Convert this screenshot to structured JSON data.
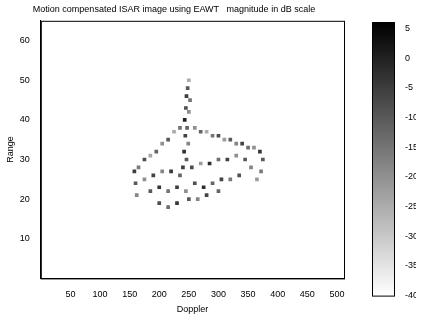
{
  "chart_data": {
    "type": "heatmap",
    "title": "Motion compensated ISAR image using EAWT   magnitude in dB scale",
    "x_label": "Doppler",
    "y_label": "Range",
    "xlim": [
      0,
      512
    ],
    "xticks": [
      50,
      100,
      150,
      200,
      250,
      300,
      350,
      400,
      450,
      500
    ],
    "ylim": [
      0,
      65
    ],
    "yticks": [
      10,
      20,
      30,
      40,
      50,
      60
    ],
    "grid": false,
    "cells": [
      [
        250,
        50,
        -25
      ],
      [
        248,
        48,
        -10
      ],
      [
        246,
        46,
        -5
      ],
      [
        252,
        45,
        -15
      ],
      [
        245,
        43,
        -8
      ],
      [
        250,
        42,
        -20
      ],
      [
        243,
        40,
        0
      ],
      [
        247,
        38,
        -12
      ],
      [
        244,
        36,
        -6
      ],
      [
        249,
        34,
        -18
      ],
      [
        242,
        32,
        -3
      ],
      [
        246,
        30,
        -10
      ],
      [
        240,
        28,
        -5
      ],
      [
        260,
        38,
        -20
      ],
      [
        270,
        37,
        -12
      ],
      [
        280,
        37,
        -25
      ],
      [
        290,
        36,
        -15
      ],
      [
        300,
        36,
        -8
      ],
      [
        310,
        35,
        -22
      ],
      [
        320,
        35,
        -10
      ],
      [
        330,
        34,
        -18
      ],
      [
        340,
        34,
        -6
      ],
      [
        350,
        33,
        -14
      ],
      [
        360,
        33,
        -20
      ],
      [
        370,
        32,
        -4
      ],
      [
        375,
        30,
        -10
      ],
      [
        372,
        27,
        -16
      ],
      [
        365,
        25,
        -22
      ],
      [
        235,
        38,
        -15
      ],
      [
        225,
        37,
        -25
      ],
      [
        215,
        35,
        -10
      ],
      [
        205,
        34,
        -20
      ],
      [
        195,
        32,
        -12
      ],
      [
        185,
        31,
        -24
      ],
      [
        175,
        30,
        -8
      ],
      [
        165,
        28,
        -16
      ],
      [
        158,
        27,
        -5
      ],
      [
        160,
        24,
        -10
      ],
      [
        162,
        21,
        -18
      ],
      [
        175,
        25,
        -20
      ],
      [
        190,
        26,
        -6
      ],
      [
        205,
        27,
        -18
      ],
      [
        220,
        27,
        -4
      ],
      [
        235,
        26,
        -12
      ],
      [
        255,
        28,
        -8
      ],
      [
        270,
        29,
        -22
      ],
      [
        285,
        29,
        -2
      ],
      [
        300,
        30,
        -14
      ],
      [
        315,
        30,
        -6
      ],
      [
        330,
        31,
        -20
      ],
      [
        345,
        30,
        -10
      ],
      [
        355,
        28,
        -18
      ],
      [
        185,
        22,
        -10
      ],
      [
        200,
        23,
        -3
      ],
      [
        215,
        22,
        -15
      ],
      [
        230,
        23,
        -5
      ],
      [
        245,
        22,
        -20
      ],
      [
        260,
        24,
        -8
      ],
      [
        275,
        23,
        -2
      ],
      [
        290,
        24,
        -12
      ],
      [
        305,
        25,
        -6
      ],
      [
        320,
        25,
        -16
      ],
      [
        335,
        26,
        -9
      ],
      [
        200,
        19,
        -8
      ],
      [
        215,
        18,
        -14
      ],
      [
        230,
        19,
        -4
      ],
      [
        250,
        20,
        -10
      ],
      [
        265,
        20,
        -18
      ],
      [
        280,
        21,
        -6
      ],
      [
        300,
        22,
        -12
      ]
    ],
    "colorbar_lim": [
      -40,
      6
    ],
    "colorbar_ticks": [
      5,
      0,
      -5,
      -10,
      -15,
      -20,
      -25,
      -30,
      -35,
      -40
    ]
  }
}
